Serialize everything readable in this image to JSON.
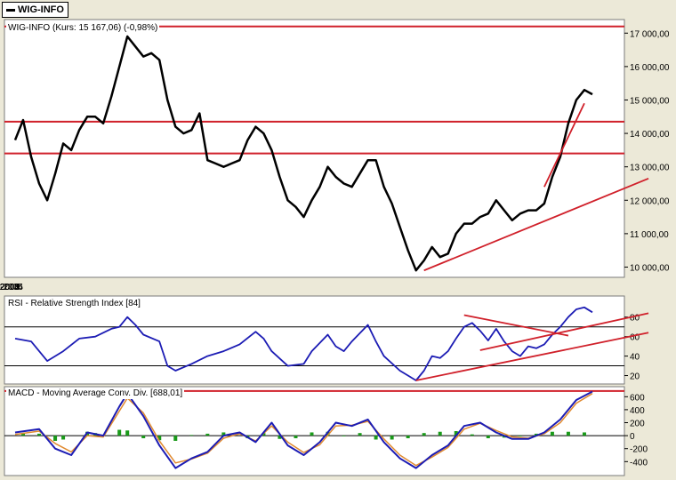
{
  "window_tab": {
    "label": "WIG-INFO"
  },
  "colors": {
    "background": "#ece9d8",
    "panel": "#ffffff",
    "price": "#000000",
    "level": "#d0202a",
    "trend": "#d0202a",
    "rsi": "#1c1cb4",
    "macd": "#1c1cb4",
    "signal": "#e08a30",
    "histogram": "#1a9a1a",
    "guide": "#000000"
  },
  "chart_data": [
    {
      "type": "line",
      "title": "WIG-INFO (Kurs: 15 167,06) (-0,98%)",
      "xlabel": "",
      "ylabel": "",
      "x_ticks": [
        "3-lis-2003",
        "1-mar-2004",
        "1-lip-2004",
        "1-lis-2004",
        "1-mar-2005",
        "1-lip-2005",
        "1-lis-2005"
      ],
      "y_ticks": [
        "10 000,00",
        "11 000,00",
        "12 000,00",
        "13 000,00",
        "14 000,00",
        "15 000,00",
        "16 000,00",
        "17 000,00"
      ],
      "ylim": [
        9800,
        17300
      ],
      "series": [
        {
          "points": [
            [
              0,
              13800
            ],
            [
              1,
              14400
            ],
            [
              2,
              13300
            ],
            [
              3,
              12500
            ],
            [
              4,
              12000
            ],
            [
              5,
              12800
            ],
            [
              6,
              13700
            ],
            [
              7,
              13500
            ],
            [
              8,
              14100
            ],
            [
              9,
              14500
            ],
            [
              10,
              14500
            ],
            [
              11,
              14300
            ],
            [
              12,
              15100
            ],
            [
              13,
              16000
            ],
            [
              14,
              16900
            ],
            [
              15,
              16600
            ],
            [
              16,
              16300
            ],
            [
              17,
              16400
            ],
            [
              18,
              16200
            ],
            [
              19,
              15000
            ],
            [
              20,
              14200
            ],
            [
              21,
              14000
            ],
            [
              22,
              14100
            ],
            [
              23,
              14600
            ],
            [
              24,
              13200
            ],
            [
              25,
              13100
            ],
            [
              26,
              13000
            ],
            [
              27,
              13100
            ],
            [
              28,
              13200
            ],
            [
              29,
              13800
            ],
            [
              30,
              14200
            ],
            [
              31,
              14000
            ],
            [
              32,
              13500
            ],
            [
              33,
              12700
            ],
            [
              34,
              12000
            ],
            [
              35,
              11800
            ],
            [
              36,
              11500
            ],
            [
              37,
              12000
            ],
            [
              38,
              12400
            ],
            [
              39,
              13000
            ],
            [
              40,
              12700
            ],
            [
              41,
              12500
            ],
            [
              42,
              12400
            ],
            [
              43,
              12800
            ],
            [
              44,
              13200
            ],
            [
              45,
              13200
            ],
            [
              46,
              12400
            ],
            [
              47,
              11900
            ],
            [
              48,
              11200
            ],
            [
              49,
              10500
            ],
            [
              50,
              9900
            ],
            [
              51,
              10200
            ],
            [
              52,
              10600
            ],
            [
              53,
              10300
            ],
            [
              54,
              10400
            ],
            [
              55,
              11000
            ],
            [
              56,
              11300
            ],
            [
              57,
              11300
            ],
            [
              58,
              11500
            ],
            [
              59,
              11600
            ],
            [
              60,
              12000
            ],
            [
              61,
              11700
            ],
            [
              62,
              11400
            ],
            [
              63,
              11600
            ],
            [
              64,
              11700
            ],
            [
              65,
              11700
            ],
            [
              66,
              11900
            ],
            [
              67,
              12700
            ],
            [
              68,
              13300
            ],
            [
              69,
              14300
            ],
            [
              70,
              15000
            ],
            [
              71,
              15300
            ],
            [
              72,
              15170
            ]
          ]
        }
      ],
      "horizontal_levels": [
        17200,
        14350,
        13400
      ],
      "trendlines": [
        [
          [
            51,
            9900
          ],
          [
            79,
            12650
          ]
        ],
        [
          [
            66,
            12400
          ],
          [
            71,
            14900
          ]
        ]
      ]
    },
    {
      "type": "line",
      "title": "RSI - Relative Strength Index [84]",
      "y_ticks": [
        "20",
        "40",
        "60",
        "80"
      ],
      "ylim": [
        15,
        98
      ],
      "series": [
        {
          "points": [
            [
              0,
              58
            ],
            [
              2,
              55
            ],
            [
              4,
              35
            ],
            [
              6,
              45
            ],
            [
              8,
              58
            ],
            [
              10,
              60
            ],
            [
              12,
              68
            ],
            [
              13,
              70
            ],
            [
              14,
              80
            ],
            [
              15,
              72
            ],
            [
              16,
              62
            ],
            [
              18,
              55
            ],
            [
              19,
              30
            ],
            [
              20,
              25
            ],
            [
              22,
              32
            ],
            [
              24,
              40
            ],
            [
              26,
              45
            ],
            [
              28,
              52
            ],
            [
              30,
              65
            ],
            [
              31,
              58
            ],
            [
              32,
              45
            ],
            [
              34,
              30
            ],
            [
              36,
              32
            ],
            [
              37,
              45
            ],
            [
              39,
              62
            ],
            [
              40,
              50
            ],
            [
              41,
              45
            ],
            [
              42,
              55
            ],
            [
              44,
              72
            ],
            [
              45,
              55
            ],
            [
              46,
              40
            ],
            [
              48,
              25
            ],
            [
              49,
              20
            ],
            [
              50,
              15
            ],
            [
              51,
              25
            ],
            [
              52,
              40
            ],
            [
              53,
              38
            ],
            [
              54,
              45
            ],
            [
              55,
              58
            ],
            [
              56,
              70
            ],
            [
              57,
              74
            ],
            [
              58,
              66
            ],
            [
              59,
              56
            ],
            [
              60,
              68
            ],
            [
              61,
              55
            ],
            [
              62,
              45
            ],
            [
              63,
              40
            ],
            [
              64,
              50
            ],
            [
              65,
              48
            ],
            [
              66,
              52
            ],
            [
              67,
              62
            ],
            [
              68,
              70
            ],
            [
              69,
              80
            ],
            [
              70,
              88
            ],
            [
              71,
              90
            ],
            [
              72,
              85
            ]
          ]
        }
      ],
      "horizontal_levels": [
        70,
        30
      ],
      "trendlines": [
        [
          [
            50,
            15
          ],
          [
            79,
            64
          ]
        ],
        [
          [
            58,
            46
          ],
          [
            79,
            84
          ]
        ],
        [
          [
            56,
            82
          ],
          [
            69,
            61
          ]
        ]
      ]
    },
    {
      "type": "line",
      "title": "MACD - Moving Average Conv. Div. [688,01]",
      "y_ticks": [
        "-400",
        "-200",
        "0",
        "200",
        "400",
        "600"
      ],
      "ylim": [
        -560,
        700
      ],
      "series": [
        {
          "name": "",
          "points": [
            [
              0,
              50
            ],
            [
              3,
              100
            ],
            [
              5,
              -200
            ],
            [
              7,
              -300
            ],
            [
              9,
              50
            ],
            [
              11,
              0
            ],
            [
              13,
              450
            ],
            [
              14,
              650
            ],
            [
              16,
              300
            ],
            [
              18,
              -150
            ],
            [
              20,
              -500
            ],
            [
              22,
              -350
            ],
            [
              24,
              -250
            ],
            [
              26,
              0
            ],
            [
              28,
              50
            ],
            [
              30,
              -100
            ],
            [
              32,
              200
            ],
            [
              34,
              -150
            ],
            [
              36,
              -300
            ],
            [
              38,
              -100
            ],
            [
              40,
              200
            ],
            [
              42,
              150
            ],
            [
              44,
              250
            ],
            [
              46,
              -100
            ],
            [
              48,
              -350
            ],
            [
              50,
              -500
            ],
            [
              52,
              -300
            ],
            [
              54,
              -150
            ],
            [
              56,
              150
            ],
            [
              58,
              200
            ],
            [
              60,
              50
            ],
            [
              62,
              -50
            ],
            [
              64,
              -50
            ],
            [
              66,
              50
            ],
            [
              68,
              250
            ],
            [
              70,
              550
            ],
            [
              72,
              680
            ]
          ]
        },
        {
          "name": "",
          "points": [
            [
              0,
              20
            ],
            [
              3,
              70
            ],
            [
              5,
              -120
            ],
            [
              7,
              -250
            ],
            [
              9,
              0
            ],
            [
              11,
              -20
            ],
            [
              13,
              380
            ],
            [
              14,
              580
            ],
            [
              16,
              350
            ],
            [
              18,
              -80
            ],
            [
              20,
              -420
            ],
            [
              22,
              -360
            ],
            [
              24,
              -270
            ],
            [
              26,
              -40
            ],
            [
              28,
              30
            ],
            [
              30,
              -80
            ],
            [
              32,
              150
            ],
            [
              34,
              -100
            ],
            [
              36,
              -260
            ],
            [
              38,
              -140
            ],
            [
              40,
              150
            ],
            [
              42,
              160
            ],
            [
              44,
              220
            ],
            [
              46,
              -50
            ],
            [
              48,
              -300
            ],
            [
              50,
              -460
            ],
            [
              52,
              -330
            ],
            [
              54,
              -180
            ],
            [
              56,
              100
            ],
            [
              58,
              190
            ],
            [
              60,
              80
            ],
            [
              62,
              -20
            ],
            [
              64,
              -40
            ],
            [
              66,
              30
            ],
            [
              68,
              200
            ],
            [
              70,
              500
            ],
            [
              72,
              650
            ]
          ]
        }
      ],
      "histogram": [
        [
          1,
          40
        ],
        [
          3,
          30
        ],
        [
          5,
          -80
        ],
        [
          6,
          -60
        ],
        [
          9,
          60
        ],
        [
          10,
          40
        ],
        [
          13,
          90
        ],
        [
          14,
          80
        ],
        [
          16,
          -40
        ],
        [
          18,
          -70
        ],
        [
          20,
          -80
        ],
        [
          22,
          10
        ],
        [
          24,
          30
        ],
        [
          26,
          50
        ],
        [
          29,
          -40
        ],
        [
          31,
          40
        ],
        [
          33,
          -50
        ],
        [
          35,
          -40
        ],
        [
          37,
          50
        ],
        [
          39,
          60
        ],
        [
          41,
          -10
        ],
        [
          43,
          40
        ],
        [
          45,
          -60
        ],
        [
          47,
          -60
        ],
        [
          49,
          -40
        ],
        [
          51,
          40
        ],
        [
          53,
          60
        ],
        [
          55,
          70
        ],
        [
          57,
          20
        ],
        [
          59,
          -40
        ],
        [
          61,
          -30
        ],
        [
          63,
          -10
        ],
        [
          65,
          30
        ],
        [
          67,
          60
        ],
        [
          69,
          60
        ],
        [
          71,
          50
        ]
      ],
      "horizontal_levels": [
        688,
        0
      ]
    }
  ]
}
